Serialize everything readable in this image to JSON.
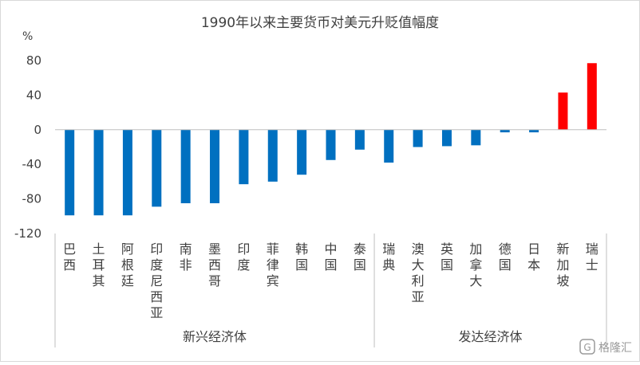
{
  "chart_data": {
    "type": "bar",
    "title": "1990年以来主要货币对美元升贬值幅度",
    "ylabel": "%",
    "ylim": [
      -120,
      80
    ],
    "yticks": [
      -120,
      -80,
      -40,
      0,
      40,
      80
    ],
    "grid": false,
    "legend": "none",
    "categories": [
      "巴西",
      "土耳其",
      "阿根廷",
      "印度尼西亚",
      "南非",
      "墨西哥",
      "印度",
      "菲律宾",
      "韩国",
      "中国",
      "泰国",
      "瑞典",
      "澳大利亚",
      "英国",
      "加拿大",
      "德国",
      "日本",
      "新加坡",
      "瑞士"
    ],
    "values": [
      -99,
      -99,
      -99,
      -89,
      -85,
      -85,
      -63,
      -60,
      -52,
      -35,
      -23,
      -38,
      -20,
      -19,
      -18,
      -3,
      -3,
      43,
      77
    ],
    "groups": [
      {
        "label": "新兴经济体",
        "count": 11
      },
      {
        "label": "发达经济体",
        "count": 8
      }
    ],
    "colors": {
      "negative": "#0070c0",
      "positive": "#ff0000",
      "axis": "#bfbfbf",
      "text": "#404040"
    }
  },
  "watermark": {
    "icon": "gelonghui-logo-icon",
    "text": "格隆汇"
  }
}
